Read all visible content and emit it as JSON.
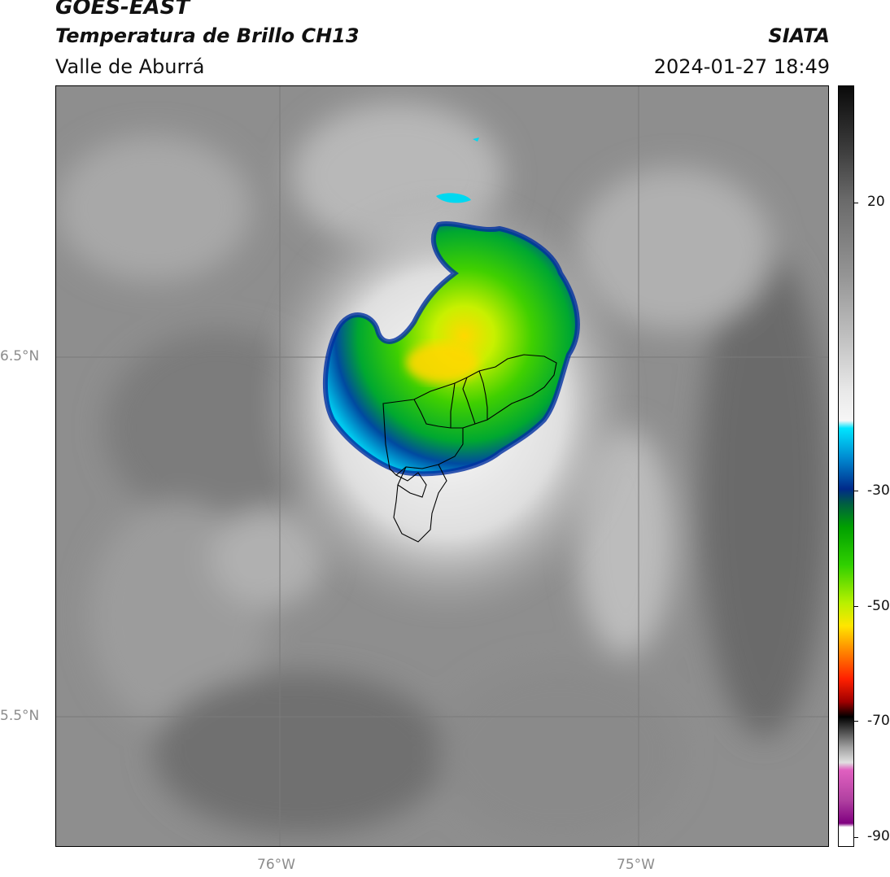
{
  "header": {
    "satellite": "GOES-EAST",
    "product": "Temperatura de Brillo CH13",
    "region": "Valle de Aburrá",
    "agency": "SIATA",
    "datetime": "2024-01-27 18:49"
  },
  "axes": {
    "lat_labels": [
      "6.5°N",
      "5.5°N"
    ],
    "lon_labels": [
      "76°W",
      "75°W"
    ]
  },
  "colorbar": {
    "labels": [
      "20",
      "-30",
      "-50",
      "-70",
      "-90"
    ],
    "colors": {
      "warm_gray_top": "#0a0a0a",
      "light_gray": "#f2f2f2",
      "cyan": "#00e5ff",
      "dark_blue": "#002a8a",
      "green": "#00c000",
      "yellow": "#ffe600",
      "orange": "#ff8000",
      "red": "#e00000",
      "black": "#000000",
      "magenta": "#e060c0"
    }
  },
  "map": {
    "features": [
      "convective-cloud-core",
      "valle-de-aburra-municipal-boundaries"
    ]
  }
}
